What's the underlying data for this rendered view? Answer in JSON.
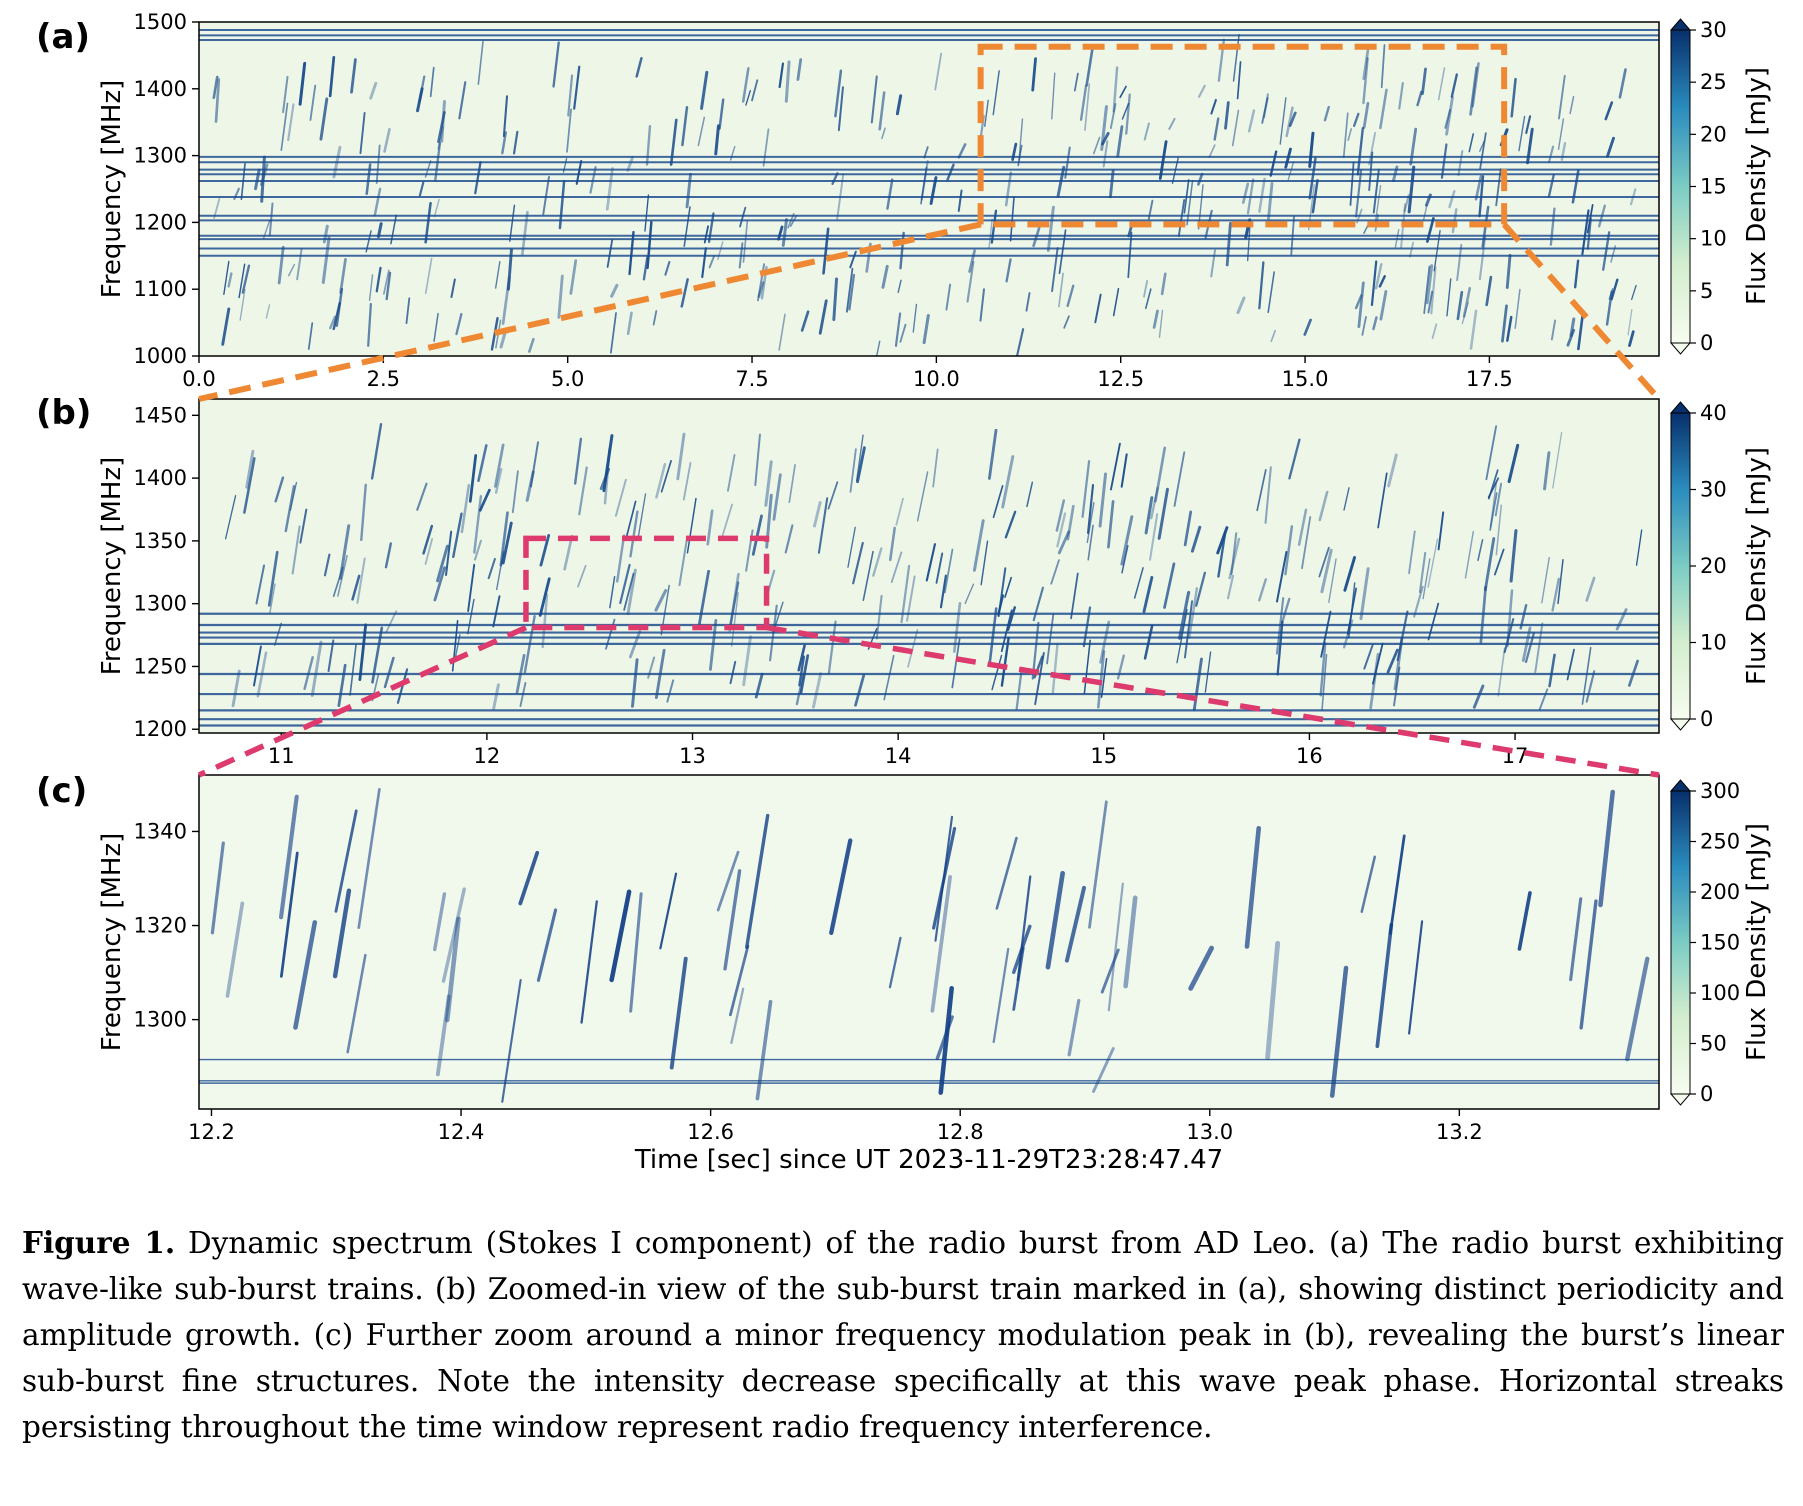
{
  "figure": {
    "panels": [
      {
        "label": "(a)",
        "ylabel": "Frequency [MHz]",
        "cbar_label": "Flux Density [mJy]",
        "xlim": [
          0.0,
          19.8
        ],
        "ylim": [
          1000,
          1500
        ],
        "xticks": [
          "0.0",
          "2.5",
          "5.0",
          "7.5",
          "10.0",
          "12.5",
          "15.0",
          "17.5"
        ],
        "yticks": [
          "1000",
          "1100",
          "1200",
          "1300",
          "1400",
          "1500"
        ],
        "cbar_ticks": [
          "0",
          "5",
          "10",
          "15",
          "20",
          "25",
          "30"
        ],
        "cbar_range": [
          0,
          30
        ]
      },
      {
        "label": "(b)",
        "ylabel": "Frequency [MHz]",
        "cbar_label": "Flux Density [mJy]",
        "xlim": [
          10.6,
          17.7
        ],
        "ylim": [
          1197,
          1463
        ],
        "xticks": [
          "11",
          "12",
          "13",
          "14",
          "15",
          "16",
          "17"
        ],
        "yticks": [
          "1200",
          "1250",
          "1300",
          "1350",
          "1400",
          "1450"
        ],
        "cbar_ticks": [
          "0",
          "10",
          "20",
          "30",
          "40"
        ],
        "cbar_range": [
          0,
          40
        ]
      },
      {
        "label": "(c)",
        "ylabel": "Frequency [MHz]",
        "cbar_label": "Flux Density [mJy]",
        "xlim": [
          12.19,
          13.36
        ],
        "ylim": [
          1281,
          1352
        ],
        "xticks": [
          "12.2",
          "12.4",
          "12.6",
          "12.8",
          "13.0",
          "13.2"
        ],
        "yticks": [
          "1300",
          "1320",
          "1340"
        ],
        "cbar_ticks": [
          "0",
          "50",
          "100",
          "150",
          "200",
          "250",
          "300"
        ],
        "cbar_range": [
          0,
          300
        ],
        "xlabel": "Time [sec] since UT 2023-11-29T23:28:47.47"
      }
    ],
    "zoom_boxes": [
      {
        "from_panel": "(a)",
        "to_panel": "(b)",
        "color": "#ee8833",
        "time": [
          10.6,
          17.7
        ],
        "freq": [
          1197,
          1463
        ]
      },
      {
        "from_panel": "(b)",
        "to_panel": "(c)",
        "color": "#dd3a6e",
        "time": [
          12.19,
          13.36
        ],
        "freq": [
          1281,
          1352
        ]
      }
    ]
  },
  "caption": {
    "label": "Figure 1.",
    "text": "Dynamic spectrum (Stokes I component) of the radio burst from AD Leo. (a) The radio burst exhibiting wave-like sub-burst trains. (b) Zoomed-in view of the sub-burst train marked in (a), showing distinct periodicity and amplitude growth. (c) Further zoom around a minor frequency modulation peak in (b), revealing the burst’s linear sub-burst fine structures. Note the intensity decrease specifically at this wave peak phase. Horizontal streaks persisting throughout the time window represent radio frequency interference."
  }
}
